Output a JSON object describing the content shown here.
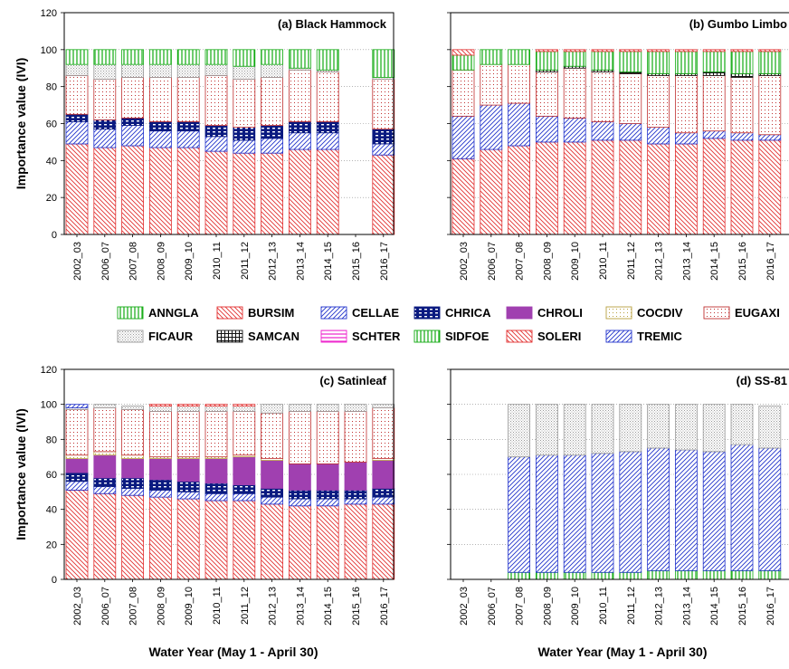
{
  "legend": {
    "species": [
      {
        "code": "ANNGLA",
        "color": "#11aa11",
        "pattern": "vert"
      },
      {
        "code": "BURSIM",
        "color": "#e23030",
        "pattern": "diagB"
      },
      {
        "code": "CELLAE",
        "color": "#2233cc",
        "pattern": "diagF"
      },
      {
        "code": "CHRICA",
        "color": "#0a1a80",
        "pattern": "brick"
      },
      {
        "code": "CHROLI",
        "color": "#a040b0",
        "pattern": "solid"
      },
      {
        "code": "COCDIV",
        "color": "#b8a040",
        "pattern": "dots"
      },
      {
        "code": "EUGAXI",
        "color": "#c03030",
        "pattern": "dots"
      },
      {
        "code": "FICAUR",
        "color": "#999999",
        "pattern": "dense"
      },
      {
        "code": "SAMCAN",
        "color": "#111111",
        "pattern": "grid"
      },
      {
        "code": "SCHTER",
        "color": "#ee22cc",
        "pattern": "horiz"
      },
      {
        "code": "SIDFOE",
        "color": "#11aa11",
        "pattern": "vert"
      },
      {
        "code": "SOLERI",
        "color": "#e23030",
        "pattern": "diagB"
      },
      {
        "code": "TREMIC",
        "color": "#2233cc",
        "pattern": "diagF"
      }
    ]
  },
  "chart_data": [
    {
      "type": "bar",
      "title": "(a) Black Hammock",
      "ylabel": "Importance value (IVI)",
      "xlabel": "",
      "ylim": [
        0,
        120
      ],
      "yticks": [
        0,
        20,
        40,
        60,
        80,
        100,
        120
      ],
      "categories": [
        "2002_03",
        "2006_07",
        "2007_08",
        "2008_09",
        "2009_10",
        "2010_11",
        "2011_12",
        "2012_13",
        "2013_14",
        "2014_15",
        "2015_16",
        "2016_17"
      ],
      "stacked": true,
      "series": [
        {
          "name": "BURSIM",
          "values": [
            49,
            47,
            48,
            47,
            47,
            45,
            44,
            44,
            46,
            46,
            0,
            43
          ]
        },
        {
          "name": "CELLAE",
          "values": [
            12,
            10,
            11,
            9,
            9,
            8,
            7,
            8,
            9,
            9,
            0,
            6
          ]
        },
        {
          "name": "CHRICA",
          "values": [
            4,
            5,
            4,
            5,
            5,
            6,
            7,
            7,
            6,
            6,
            0,
            8
          ]
        },
        {
          "name": "EUGAXI",
          "values": [
            21,
            22,
            22,
            24,
            24,
            27,
            26,
            26,
            28,
            27,
            0,
            27
          ]
        },
        {
          "name": "FICAUR",
          "values": [
            6,
            8,
            7,
            7,
            7,
            6,
            7,
            7,
            1,
            1,
            0,
            1
          ]
        },
        {
          "name": "SIDFOE",
          "values": [
            8,
            8,
            8,
            8,
            8,
            8,
            9,
            8,
            10,
            11,
            0,
            15
          ]
        }
      ]
    },
    {
      "type": "bar",
      "title": "(b) Gumbo Limbo",
      "ylabel": "",
      "xlabel": "",
      "ylim": [
        0,
        120
      ],
      "categories": [
        "2002_03",
        "2006_07",
        "2007_08",
        "2008_09",
        "2009_10",
        "2010_11",
        "2011_12",
        "2012_13",
        "2013_14",
        "2014_15",
        "2015_16",
        "2016_17"
      ],
      "stacked": true,
      "series": [
        {
          "name": "BURSIM",
          "values": [
            41,
            46,
            48,
            50,
            50,
            51,
            51,
            49,
            49,
            52,
            51,
            51
          ]
        },
        {
          "name": "TREMIC",
          "values": [
            23,
            24,
            23,
            14,
            13,
            10,
            9,
            9,
            6,
            4,
            4,
            3
          ]
        },
        {
          "name": "EUGAXI",
          "values": [
            25,
            22,
            21,
            24,
            27,
            27,
            27,
            28,
            31,
            30,
            30,
            32
          ]
        },
        {
          "name": "SAMCAN",
          "values": [
            0,
            0,
            0,
            1,
            1,
            1,
            1,
            1,
            1,
            2,
            2,
            1
          ]
        },
        {
          "name": "SIDFOE",
          "values": [
            8,
            8,
            8,
            10,
            8,
            10,
            11,
            12,
            12,
            11,
            12,
            12
          ]
        },
        {
          "name": "SOLERI",
          "values": [
            3,
            0,
            0,
            1,
            1,
            1,
            1,
            1,
            1,
            1,
            1,
            1
          ]
        }
      ]
    },
    {
      "type": "bar",
      "title": "(c) Satinleaf",
      "ylabel": "Importance value (IVI)",
      "xlabel": "Water Year (May 1 - April 30)",
      "ylim": [
        0,
        120
      ],
      "yticks": [
        0,
        20,
        40,
        60,
        80,
        100,
        120
      ],
      "categories": [
        "2002_03",
        "2006_07",
        "2007_08",
        "2008_09",
        "2009_10",
        "2010_11",
        "2011_12",
        "2012_13",
        "2013_14",
        "2014_15",
        "2015_16",
        "2016_17"
      ],
      "stacked": true,
      "series": [
        {
          "name": "BURSIM",
          "values": [
            51,
            49,
            48,
            47,
            46,
            45,
            45,
            43,
            42,
            42,
            43,
            43
          ]
        },
        {
          "name": "CELLAE",
          "values": [
            5,
            4,
            4,
            4,
            4,
            4,
            4,
            4,
            4,
            4,
            3,
            4
          ]
        },
        {
          "name": "CHRICA",
          "values": [
            5,
            5,
            6,
            6,
            6,
            6,
            5,
            5,
            5,
            5,
            5,
            5
          ]
        },
        {
          "name": "CHROLI",
          "values": [
            8,
            13,
            11,
            12,
            13,
            14,
            16,
            16,
            15,
            15,
            16,
            16
          ]
        },
        {
          "name": "COCDIV",
          "values": [
            2,
            2,
            2,
            1,
            1,
            1,
            1,
            1,
            0,
            0,
            0,
            1
          ]
        },
        {
          "name": "EUGAXI",
          "values": [
            26,
            25,
            26,
            26,
            26,
            26,
            25,
            26,
            30,
            30,
            29,
            29
          ]
        },
        {
          "name": "FICAUR",
          "values": [
            1,
            2,
            2,
            3,
            3,
            3,
            3,
            5,
            4,
            4,
            4,
            2
          ]
        },
        {
          "name": "SOLERI",
          "values": [
            0,
            0,
            0,
            1,
            1,
            1,
            1,
            0,
            0,
            0,
            0,
            0
          ]
        },
        {
          "name": "TREMIC",
          "values": [
            2,
            0,
            0,
            0,
            0,
            0,
            0,
            0,
            0,
            0,
            0,
            0
          ]
        }
      ]
    },
    {
      "type": "bar",
      "title": "(d) SS-81",
      "ylabel": "",
      "xlabel": "Water Year (May 1 - April 30)",
      "ylim": [
        0,
        120
      ],
      "categories": [
        "2002_03",
        "2006_07",
        "2007_08",
        "2008_09",
        "2009_10",
        "2010_11",
        "2011_12",
        "2012_13",
        "2013_14",
        "2014_15",
        "2015_16",
        "2016_17"
      ],
      "stacked": true,
      "series": [
        {
          "name": "ANNGLA",
          "values": [
            0,
            0,
            4,
            4,
            4,
            4,
            4,
            5,
            5,
            5,
            5,
            5
          ]
        },
        {
          "name": "TREMIC",
          "values": [
            0,
            0,
            66,
            67,
            67,
            68,
            69,
            70,
            69,
            68,
            72,
            70
          ]
        },
        {
          "name": "FICAUR",
          "values": [
            0,
            0,
            30,
            29,
            29,
            28,
            27,
            25,
            26,
            27,
            23,
            24
          ]
        }
      ]
    }
  ]
}
